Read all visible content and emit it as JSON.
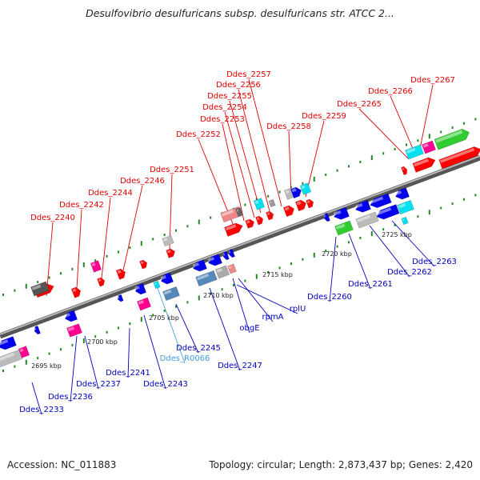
{
  "header": {
    "title": "Desulfovibrio desulfuricans subsp. desulfuricans str. ATCC 2..."
  },
  "footer": {
    "accession": "Accession: NC_011883",
    "summary": "Topology: circular; Length: 2,873,437 bp; Genes: 2,420"
  },
  "colors": {
    "forward_label": "#e00000",
    "reverse_label": "#0000c0",
    "rna_label": "#40a0e0",
    "red": "#ff0000",
    "blue": "#0000ee",
    "cyan": "#00e0f0",
    "magenta": "#ff0090",
    "green": "#30cc30",
    "grey": "#bbbbbb",
    "steel": "#5588bb",
    "tick": "#228822"
  },
  "scale": {
    "ticks": [
      "2695 kbp",
      "2700 kbp",
      "2705 kbp",
      "2710 kbp",
      "2715 kbp",
      "2720 kbp",
      "2725 kbp"
    ]
  },
  "forward_genes": [
    "Ddes_2240",
    "Ddes_2242",
    "Ddes_2244",
    "Ddes_2246",
    "Ddes_2251",
    "Ddes_2252",
    "Ddes_2253",
    "Ddes_2254",
    "Ddes_2255",
    "Ddes_2256",
    "Ddes_2257",
    "Ddes_2258",
    "Ddes_2259",
    "Ddes_2265",
    "Ddes_2266",
    "Ddes_2267"
  ],
  "reverse_genes": [
    "Ddes_2233",
    "Ddes_2236",
    "Ddes_2237",
    "Ddes_2241",
    "Ddes_2243",
    "Ddes_2245",
    "Ddes_2247",
    "obgE",
    "rpmA",
    "rplU",
    "Ddes_2260",
    "Ddes_2261",
    "Ddes_2262",
    "Ddes_2263"
  ],
  "rna_genes": [
    "Ddes_R0066"
  ]
}
